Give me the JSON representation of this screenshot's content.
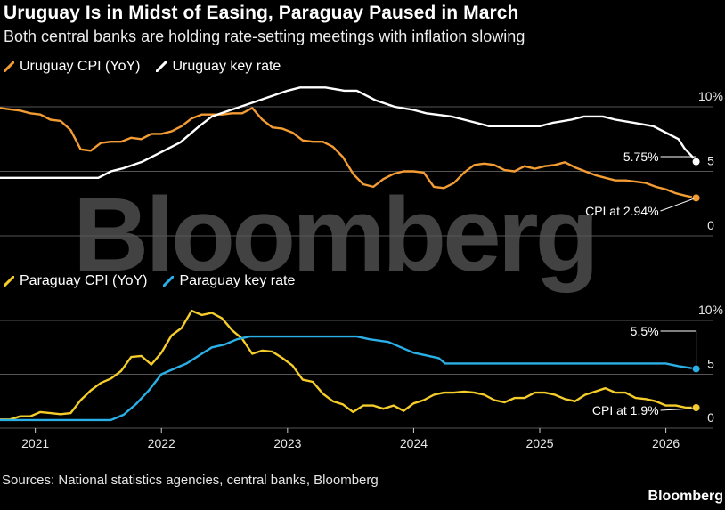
{
  "header": {
    "title": "Uruguay Is in Midst of Easing, Paraguay Paused in March",
    "subtitle": "Both central banks are holding rate-setting meetings with inflation slowing"
  },
  "footer": {
    "source": "Sources: National statistics agencies, central banks, Bloomberg",
    "brand": "Bloomberg"
  },
  "watermark": "Bloomberg",
  "colors": {
    "background": "#000000",
    "uruguay_cpi": "#f39c34",
    "uruguay_rate": "#ffffff",
    "paraguay_cpi": "#f5cd2a",
    "paraguay_rate": "#2ab0e6",
    "grid": "#555555",
    "watermark": "#555555"
  },
  "chart_data": [
    {
      "type": "line",
      "title": "Uruguay",
      "x_axis": {
        "ticks": [
          2021,
          2022,
          2023,
          2024,
          2025,
          2026
        ],
        "range": [
          2020.72,
          2026.37
        ]
      },
      "y_axis": {
        "ticks": [
          0,
          5,
          10
        ],
        "tick_labels": [
          "0",
          "5",
          "10%"
        ],
        "range": [
          0,
          10
        ]
      },
      "legend": [
        "Uruguay CPI (YoY)",
        "Uruguay key rate"
      ],
      "series": [
        {
          "name": "Uruguay CPI (YoY)",
          "color": "#f39c34",
          "x": [
            2020.72,
            2020.8,
            2020.88,
            2020.96,
            2021.04,
            2021.12,
            2021.2,
            2021.28,
            2021.36,
            2021.44,
            2021.52,
            2021.6,
            2021.68,
            2021.76,
            2021.84,
            2021.92,
            2022.0,
            2022.08,
            2022.16,
            2022.24,
            2022.32,
            2022.4,
            2022.48,
            2022.56,
            2022.64,
            2022.72,
            2022.8,
            2022.88,
            2022.96,
            2023.04,
            2023.12,
            2023.2,
            2023.28,
            2023.36,
            2023.44,
            2023.52,
            2023.6,
            2023.68,
            2023.76,
            2023.84,
            2023.92,
            2024.0,
            2024.08,
            2024.16,
            2024.24,
            2024.32,
            2024.4,
            2024.48,
            2024.56,
            2024.64,
            2024.72,
            2024.8,
            2024.88,
            2024.96,
            2025.04,
            2025.12,
            2025.2,
            2025.28,
            2025.36,
            2025.44,
            2025.52,
            2025.6,
            2025.68,
            2025.76,
            2025.84,
            2025.92,
            2026.0,
            2026.08,
            2026.16,
            2026.24
          ],
          "values": [
            9.9,
            9.8,
            9.7,
            9.5,
            9.4,
            9.0,
            8.9,
            8.2,
            6.7,
            6.6,
            7.2,
            7.3,
            7.3,
            7.6,
            7.5,
            7.9,
            7.9,
            8.1,
            8.5,
            9.1,
            9.4,
            9.4,
            9.4,
            9.5,
            9.5,
            9.9,
            9.0,
            8.4,
            8.3,
            8.0,
            7.4,
            7.3,
            7.3,
            6.9,
            6.1,
            4.8,
            4.0,
            3.8,
            4.4,
            4.8,
            5.0,
            5.0,
            4.9,
            3.8,
            3.7,
            4.1,
            4.9,
            5.5,
            5.6,
            5.5,
            5.1,
            5.0,
            5.4,
            5.2,
            5.4,
            5.5,
            5.7,
            5.3,
            5.0,
            4.7,
            4.5,
            4.3,
            4.3,
            4.2,
            4.1,
            3.8,
            3.6,
            3.3,
            3.1,
            2.94
          ]
        },
        {
          "name": "Uruguay key rate",
          "color": "#ffffff",
          "x": [
            2020.72,
            2021.5,
            2021.6,
            2021.7,
            2021.85,
            2022.0,
            2022.15,
            2022.3,
            2022.4,
            2022.55,
            2022.7,
            2022.85,
            2023.0,
            2023.1,
            2023.3,
            2023.45,
            2023.55,
            2023.7,
            2023.85,
            2024.0,
            2024.1,
            2024.3,
            2024.4,
            2024.6,
            2024.8,
            2025.0,
            2025.1,
            2025.25,
            2025.35,
            2025.5,
            2025.6,
            2025.75,
            2025.9,
            2026.0,
            2026.1,
            2026.15,
            2026.2,
            2026.24
          ],
          "values": [
            4.5,
            4.5,
            5.0,
            5.25,
            5.75,
            6.5,
            7.25,
            8.5,
            9.25,
            9.75,
            10.25,
            10.75,
            11.25,
            11.5,
            11.5,
            11.25,
            11.25,
            10.5,
            10.0,
            9.75,
            9.5,
            9.25,
            9.0,
            8.5,
            8.5,
            8.5,
            8.75,
            9.0,
            9.25,
            9.25,
            9.0,
            8.75,
            8.5,
            8.0,
            7.5,
            6.75,
            6.25,
            5.75
          ]
        }
      ],
      "annotations": [
        {
          "text": "5.75%",
          "series": "Uruguay key rate",
          "x": 2026.24,
          "y": 5.75
        },
        {
          "text": "CPI at 2.94%",
          "series": "Uruguay CPI (YoY)",
          "x": 2026.24,
          "y": 2.94
        }
      ]
    },
    {
      "type": "line",
      "title": "Paraguay",
      "x_axis": {
        "ticks": [
          2021,
          2022,
          2023,
          2024,
          2025,
          2026
        ],
        "range": [
          2020.72,
          2026.37
        ]
      },
      "y_axis": {
        "ticks": [
          0,
          5,
          10
        ],
        "tick_labels": [
          "0",
          "5",
          "10%"
        ],
        "range": [
          0,
          10
        ]
      },
      "legend": [
        "Paraguay CPI (YoY)",
        "Paraguay key rate"
      ],
      "series": [
        {
          "name": "Paraguay CPI (YoY)",
          "color": "#f5cd2a",
          "x": [
            2020.72,
            2020.8,
            2020.88,
            2020.96,
            2021.04,
            2021.12,
            2021.2,
            2021.28,
            2021.36,
            2021.44,
            2021.52,
            2021.6,
            2021.68,
            2021.76,
            2021.84,
            2021.92,
            2022.0,
            2022.08,
            2022.16,
            2022.24,
            2022.32,
            2022.4,
            2022.48,
            2022.56,
            2022.64,
            2022.72,
            2022.8,
            2022.88,
            2022.96,
            2023.04,
            2023.12,
            2023.2,
            2023.28,
            2023.36,
            2023.44,
            2023.52,
            2023.6,
            2023.68,
            2023.76,
            2023.84,
            2023.92,
            2024.0,
            2024.08,
            2024.16,
            2024.24,
            2024.32,
            2024.4,
            2024.48,
            2024.56,
            2024.64,
            2024.72,
            2024.8,
            2024.88,
            2024.96,
            2025.04,
            2025.12,
            2025.2,
            2025.28,
            2025.36,
            2025.44,
            2025.52,
            2025.6,
            2025.68,
            2025.76,
            2025.84,
            2025.92,
            2026.0,
            2026.08,
            2026.16,
            2026.24
          ],
          "values": [
            0.8,
            0.8,
            1.1,
            1.1,
            1.5,
            1.4,
            1.3,
            1.4,
            2.6,
            3.5,
            4.2,
            4.6,
            5.3,
            6.6,
            6.7,
            5.9,
            7.0,
            8.6,
            9.3,
            10.9,
            10.5,
            10.7,
            10.2,
            9.1,
            8.3,
            6.9,
            7.2,
            7.1,
            6.5,
            5.8,
            4.5,
            4.3,
            3.2,
            2.5,
            2.2,
            1.5,
            2.1,
            2.1,
            1.8,
            2.1,
            1.6,
            2.3,
            2.6,
            3.1,
            3.3,
            3.3,
            3.4,
            3.3,
            3.1,
            2.6,
            2.4,
            2.8,
            2.8,
            3.3,
            3.3,
            3.1,
            2.7,
            2.5,
            3.1,
            3.4,
            3.7,
            3.3,
            3.3,
            2.8,
            2.7,
            2.5,
            2.1,
            2.1,
            1.9,
            1.9
          ]
        },
        {
          "name": "Paraguay key rate",
          "color": "#2ab0e6",
          "x": [
            2020.72,
            2021.6,
            2021.7,
            2021.8,
            2021.9,
            2022.0,
            2022.1,
            2022.2,
            2022.3,
            2022.4,
            2022.5,
            2022.6,
            2022.7,
            2022.75,
            2023.0,
            2023.55,
            2023.65,
            2023.8,
            2023.9,
            2024.0,
            2024.1,
            2024.2,
            2024.25,
            2024.5,
            2025.0,
            2025.5,
            2026.0,
            2026.1,
            2026.24
          ],
          "values": [
            0.75,
            0.75,
            1.25,
            2.25,
            3.5,
            5.0,
            5.5,
            6.0,
            6.75,
            7.5,
            7.75,
            8.25,
            8.5,
            8.5,
            8.5,
            8.5,
            8.25,
            8.0,
            7.5,
            7.0,
            6.75,
            6.5,
            6.0,
            6.0,
            6.0,
            6.0,
            6.0,
            5.75,
            5.5
          ]
        }
      ],
      "annotations": [
        {
          "text": "5.5%",
          "series": "Paraguay key rate",
          "x": 2026.24,
          "y": 5.5
        },
        {
          "text": "CPI at 1.9%",
          "series": "Paraguay CPI (YoY)",
          "x": 2026.24,
          "y": 1.9
        }
      ]
    }
  ]
}
